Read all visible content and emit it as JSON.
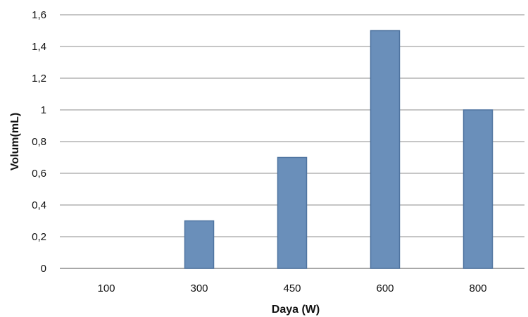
{
  "chart_data": {
    "type": "bar",
    "title": "",
    "xlabel": "Daya (W)",
    "ylabel": "Volum(mL)",
    "categories": [
      "100",
      "300",
      "450",
      "600",
      "800"
    ],
    "values": [
      0,
      0.3,
      0.7,
      1.5,
      1.0
    ],
    "ylim": [
      0,
      1.6
    ],
    "yticks": [
      "0",
      "0,2",
      "0,4",
      "0,6",
      "0,8",
      "1",
      "1,2",
      "1,4",
      "1,6"
    ],
    "grid": true,
    "legend": "none",
    "colors": {
      "bar_fill": "#6a8fba",
      "bar_stroke": "#4f74a0",
      "gridline": "#8c8c8c",
      "axis": "#8c8c8c"
    }
  }
}
